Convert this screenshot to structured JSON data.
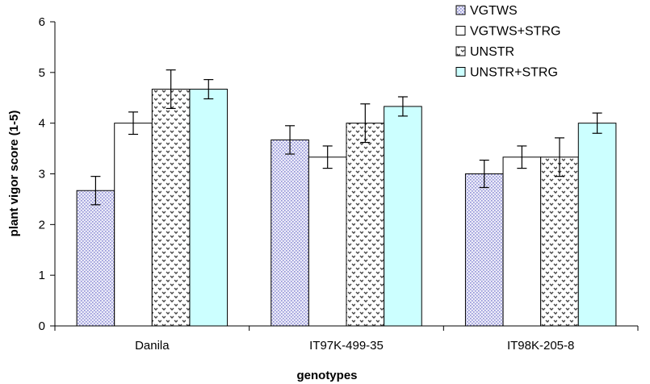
{
  "chart_data": {
    "type": "bar",
    "title": "",
    "xlabel": "genotypes",
    "ylabel": "plant vigor score (1-5)",
    "ylim": [
      0,
      6
    ],
    "yticks": [
      0,
      1,
      2,
      3,
      4,
      5,
      6
    ],
    "grid": false,
    "legend_position": "top-right",
    "categories": [
      "Danila",
      "IT97K-499-35",
      "IT98K-205-8"
    ],
    "series": [
      {
        "name": "VGTWS",
        "values": [
          2.67,
          3.67,
          3.0
        ],
        "errors": [
          0.28,
          0.28,
          0.27
        ],
        "color": "#c9c9ee",
        "pattern": "dots"
      },
      {
        "name": "VGTWS+STRG",
        "values": [
          4.0,
          3.33,
          3.33
        ],
        "errors": [
          0.22,
          0.22,
          0.22
        ],
        "color": "#ffffff",
        "pattern": "none"
      },
      {
        "name": "UNSTR",
        "values": [
          4.67,
          4.0,
          3.33
        ],
        "errors": [
          0.38,
          0.38,
          0.38
        ],
        "color": "#ffffff",
        "pattern": "zigzag"
      },
      {
        "name": "UNSTR+STRG",
        "values": [
          4.67,
          4.33,
          4.0
        ],
        "errors": [
          0.19,
          0.19,
          0.2
        ],
        "color": "#ccffff",
        "pattern": "none"
      }
    ]
  }
}
